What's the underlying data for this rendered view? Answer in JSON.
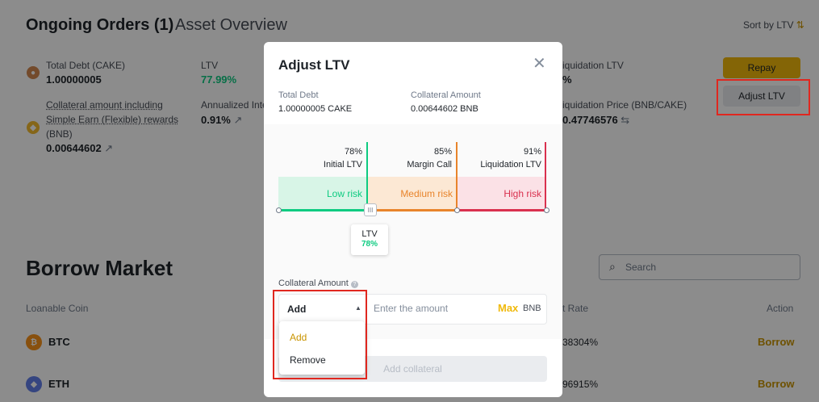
{
  "header": {
    "tab_ongoing": "Ongoing Orders (1)",
    "tab_asset": "Asset Overview",
    "sort": "Sort by LTV"
  },
  "order": {
    "total_debt_label": "Total Debt (CAKE)",
    "total_debt_value": "1.00000005",
    "ltv_label": "LTV",
    "ltv_value": "77.99%",
    "collateral_label_1": "Collateral amount including",
    "collateral_label_2": "Simple Earn (Flexible) rewards",
    "collateral_label_3": "(BNB)",
    "collateral_value": "0.00644602",
    "annualized_label": "Annualized Inte",
    "annualized_value": "0.91%",
    "liq_ltv_label": "iquidation LTV",
    "liq_ltv_value": "%",
    "liq_price_label": "iquidation Price (BNB/CAKE)",
    "liq_price_value": "0.47746576",
    "repay": "Repay",
    "adjust_ltv": "Adjust LTV"
  },
  "market": {
    "title": "Borrow Market",
    "search_placeholder": "Search",
    "col_coin": "Loanable Coin",
    "col_rate": "t Rate",
    "col_action": "Action",
    "rows": [
      {
        "coin": "BTC",
        "rate": "38304%",
        "action": "Borrow"
      },
      {
        "coin": "ETH",
        "rate": "96915%",
        "action": "Borrow"
      }
    ]
  },
  "modal": {
    "title": "Adjust LTV",
    "total_debt_label": "Total Debt",
    "total_debt_value": "1.00000005 CAKE",
    "collateral_label": "Collateral Amount",
    "collateral_value": "0.00644602 BNB",
    "markers": [
      {
        "pct": "78%",
        "name": "Initial LTV"
      },
      {
        "pct": "85%",
        "name": "Margin Call"
      },
      {
        "pct": "91%",
        "name": "Liquidation LTV"
      }
    ],
    "zones": {
      "low": "Low risk",
      "medium": "Medium risk",
      "high": "High risk"
    },
    "slider_value": 0.78,
    "ltv_tip_label": "LTV",
    "ltv_tip_value": "78%",
    "collateral_section_label": "Collateral Amount",
    "action_selected": "Add",
    "amount_placeholder": "Enter the amount",
    "max": "Max",
    "unit": "BNB",
    "dropdown_options": [
      "Add",
      "Remove"
    ],
    "add_collateral_button": "Add collateral"
  },
  "colors": {
    "accent_yellow": "#f0b90b",
    "green": "#0ecb81",
    "orange": "#e8842b",
    "red": "#d9304e",
    "highlight": "#e0271f"
  }
}
